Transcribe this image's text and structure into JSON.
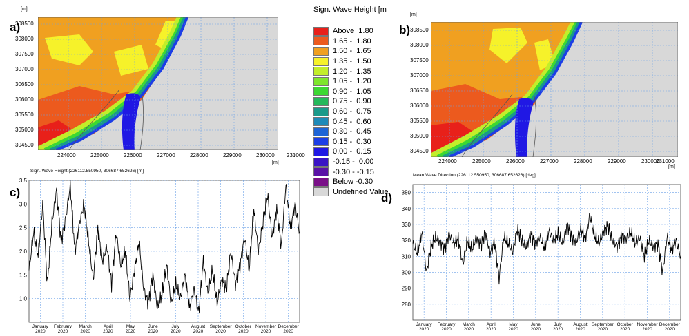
{
  "panels": {
    "a": "a)",
    "b": "b)",
    "c": "c)",
    "d": "d)"
  },
  "units": {
    "m": "[m]"
  },
  "map_a": {
    "y_ticks": [
      "308500",
      "308000",
      "307500",
      "307000",
      "306500",
      "306000",
      "305500",
      "305000",
      "304500"
    ],
    "x_ticks": [
      "224000",
      "225000",
      "226000",
      "227000",
      "228000",
      "229000",
      "230000",
      "231000"
    ]
  },
  "map_b": {
    "y_ticks": [
      "308500",
      "308000",
      "307500",
      "307000",
      "306500",
      "306000",
      "305500",
      "305000",
      "304500"
    ],
    "x_ticks": [
      "224000",
      "225000",
      "226000",
      "227000",
      "228000",
      "229000",
      "230000",
      "231000"
    ]
  },
  "legend": {
    "title": "Sign. Wave Height [m",
    "items": [
      {
        "label": "Above  1.80",
        "color": "#e8201a"
      },
      {
        "label": "1.65 -  1.80",
        "color": "#ec5a1e"
      },
      {
        "label": "1.50 -  1.65",
        "color": "#f0a020"
      },
      {
        "label": "1.35 -  1.50",
        "color": "#f6f22a"
      },
      {
        "label": "1.20 -  1.35",
        "color": "#c2ee2a"
      },
      {
        "label": "1.05 -  1.20",
        "color": "#7ee62c"
      },
      {
        "label": "0.90 -  1.05",
        "color": "#3cd832"
      },
      {
        "label": "0.75 -  0.90",
        "color": "#24b85a"
      },
      {
        "label": "0.60 -  0.75",
        "color": "#1a9a8a"
      },
      {
        "label": "0.45 -  0.60",
        "color": "#1e8ab8"
      },
      {
        "label": "0.30 -  0.45",
        "color": "#1e64d6"
      },
      {
        "label": "0.15 -  0.30",
        "color": "#1c3ee6"
      },
      {
        "label": "0.00 -  0.15",
        "color": "#2018e4"
      },
      {
        "label": "-0.15 -  0.00",
        "color": "#3a14c4"
      },
      {
        "label": "-0.30 - -0.15",
        "color": "#5a12a6"
      },
      {
        "label": "Below -0.30",
        "color": "#7a1088"
      },
      {
        "label": "Undefined Value",
        "color": "#d8d8d8"
      }
    ]
  },
  "chart_data": [
    {
      "type": "line",
      "title": "Sign. Wave Height (226112.550950, 306687.652626) [m]",
      "ylim": [
        0.5,
        3.5
      ],
      "y_ticks": [
        "3.5",
        "3.0",
        "2.5",
        "2.0",
        "1.5",
        "1.0"
      ],
      "x_month_labels": [
        "January",
        "February",
        "March",
        "April",
        "May",
        "June",
        "July",
        "August",
        "September",
        "October",
        "November",
        "December"
      ],
      "x_year_label": "2020",
      "series": [
        {
          "values": [
            1.6,
            2.4,
            1.9,
            3.0,
            1.3,
            2.6,
            3.3,
            2.2,
            2.7,
            3.4,
            2.0,
            2.6,
            3.0,
            2.2,
            1.4,
            2.5,
            1.8,
            2.1,
            1.3,
            2.4,
            1.7,
            2.0,
            1.0,
            1.6,
            2.2,
            1.2,
            0.9,
            1.5,
            0.8,
            1.1,
            1.7,
            0.9,
            1.3,
            1.0,
            1.5,
            0.8,
            1.2,
            0.7,
            1.8,
            1.1,
            1.6,
            0.9,
            1.4,
            1.2,
            2.0,
            1.3,
            1.7,
            2.3,
            1.6,
            2.9,
            2.0,
            2.6,
            3.2,
            2.3,
            2.9,
            2.1,
            3.4,
            2.5,
            3.0,
            2.4
          ]
        }
      ]
    },
    {
      "type": "line",
      "title": "Mean Wave Direction (226112.550950, 306687.652626) [deg]",
      "ylim": [
        270,
        355
      ],
      "y_ticks": [
        "350",
        "340",
        "330",
        "320",
        "310",
        "300",
        "290",
        "280"
      ],
      "x_month_labels": [
        "January",
        "February",
        "March",
        "April",
        "May",
        "June",
        "July",
        "August",
        "September",
        "October",
        "November",
        "December"
      ],
      "x_year_label": "2020",
      "series": [
        {
          "values": [
            318,
            312,
            325,
            300,
            316,
            322,
            319,
            315,
            324,
            318,
            321,
            305,
            320,
            314,
            322,
            317,
            325,
            312,
            319,
            296,
            322,
            318,
            313,
            327,
            320,
            316,
            324,
            318,
            322,
            315,
            326,
            320,
            324,
            318,
            330,
            322,
            319,
            327,
            321,
            336,
            323,
            318,
            326,
            329,
            320,
            316,
            323,
            321,
            325,
            318,
            322,
            310,
            320,
            316,
            318,
            300,
            322,
            314,
            320,
            310
          ]
        }
      ]
    }
  ]
}
